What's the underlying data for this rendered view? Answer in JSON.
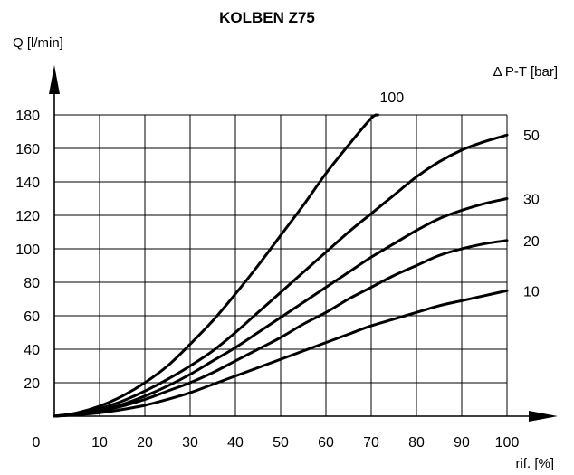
{
  "chart_data": {
    "type": "line",
    "title": "KOLBEN Z75",
    "xlabel": "rif. [%]",
    "ylabel": "Q [l/min]",
    "legend_title": "Δ P-T [bar]",
    "origin_label": "0",
    "xlim": [
      0,
      100
    ],
    "ylim": [
      0,
      180
    ],
    "xticks": [
      10,
      20,
      30,
      40,
      50,
      60,
      70,
      80,
      90,
      100
    ],
    "yticks": [
      20,
      40,
      60,
      80,
      100,
      120,
      140,
      160,
      180
    ],
    "grid": true,
    "series": [
      {
        "name": "100",
        "x": [
          0,
          5,
          10,
          15,
          20,
          25,
          30,
          35,
          40,
          45,
          50,
          55,
          60,
          65,
          70,
          71.5
        ],
        "y": [
          0,
          2,
          6,
          12,
          20,
          30,
          43,
          57,
          73,
          90,
          108,
          126,
          145,
          162,
          178,
          180
        ]
      },
      {
        "name": "50",
        "x": [
          0,
          5,
          10,
          15,
          20,
          25,
          30,
          35,
          40,
          45,
          50,
          55,
          60,
          65,
          70,
          75,
          80,
          85,
          90,
          95,
          100
        ],
        "y": [
          0,
          1.5,
          4.5,
          9,
          15,
          22,
          30,
          39,
          50,
          62,
          74,
          86,
          98,
          110,
          121,
          132,
          143,
          152,
          159,
          164,
          168
        ]
      },
      {
        "name": "30",
        "x": [
          0,
          5,
          10,
          15,
          20,
          25,
          30,
          35,
          40,
          45,
          50,
          55,
          60,
          65,
          70,
          75,
          80,
          85,
          90,
          95,
          100
        ],
        "y": [
          0,
          1.2,
          3.5,
          7,
          12,
          18,
          25,
          33,
          41,
          50,
          59,
          68,
          77,
          86,
          95,
          103,
          111,
          118,
          123,
          127,
          130
        ]
      },
      {
        "name": "20",
        "x": [
          0,
          5,
          10,
          15,
          20,
          25,
          30,
          35,
          40,
          45,
          50,
          55,
          60,
          65,
          70,
          75,
          80,
          85,
          90,
          95,
          100
        ],
        "y": [
          0,
          1,
          3,
          6,
          10,
          15,
          20,
          26,
          33,
          40,
          47,
          55,
          62,
          70,
          77,
          84,
          90,
          96,
          100,
          103,
          105
        ]
      },
      {
        "name": "10",
        "x": [
          0,
          5,
          10,
          15,
          20,
          25,
          30,
          35,
          40,
          45,
          50,
          55,
          60,
          65,
          70,
          75,
          80,
          85,
          90,
          95,
          100
        ],
        "y": [
          0,
          0.8,
          2,
          4,
          6.5,
          10,
          14,
          19,
          24,
          29,
          34,
          39,
          44,
          49,
          54,
          58,
          62,
          66,
          69,
          72,
          75
        ]
      }
    ]
  }
}
